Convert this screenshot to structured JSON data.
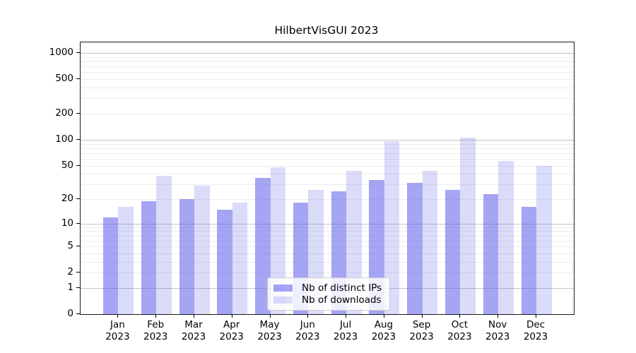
{
  "title": "HilbertVisGUI 2023",
  "colors": {
    "ips_bar": "rgba(105,105,235,0.6)",
    "downloads_bar": "rgba(105,105,235,0.24)",
    "grid_major": "#c2c2c2",
    "grid_minor": "#ececec",
    "axis": "#1a1a1a",
    "legend_border": "#cccccc"
  },
  "legend": {
    "items": [
      {
        "label": "Nb of distinct IPs",
        "color_key": "ips_bar"
      },
      {
        "label": "Nb of downloads",
        "color_key": "downloads_bar"
      }
    ]
  },
  "chart_data": {
    "type": "bar",
    "title": "HilbertVisGUI 2023",
    "scale": "log1p",
    "grid": true,
    "legend_position": "lower center",
    "categories": [
      {
        "month": "Jan",
        "year": "2023"
      },
      {
        "month": "Feb",
        "year": "2023"
      },
      {
        "month": "Mar",
        "year": "2023"
      },
      {
        "month": "Apr",
        "year": "2023"
      },
      {
        "month": "May",
        "year": "2023"
      },
      {
        "month": "Jun",
        "year": "2023"
      },
      {
        "month": "Jul",
        "year": "2023"
      },
      {
        "month": "Aug",
        "year": "2023"
      },
      {
        "month": "Sep",
        "year": "2023"
      },
      {
        "month": "Oct",
        "year": "2023"
      },
      {
        "month": "Nov",
        "year": "2023"
      },
      {
        "month": "Dec",
        "year": "2023"
      }
    ],
    "series": [
      {
        "name": "Nb of distinct IPs",
        "values": [
          12,
          19,
          20,
          15,
          36,
          18,
          25,
          34,
          31,
          26,
          23,
          16
        ]
      },
      {
        "name": "Nb of downloads",
        "values": [
          16,
          38,
          29,
          18,
          48,
          26,
          43,
          97,
          43,
          106,
          57,
          50
        ]
      }
    ],
    "yticks": [
      0,
      1,
      2,
      5,
      10,
      20,
      50,
      100,
      200,
      500,
      1000
    ],
    "ylim": [
      0,
      1320
    ],
    "xlabel": "",
    "ylabel": ""
  }
}
